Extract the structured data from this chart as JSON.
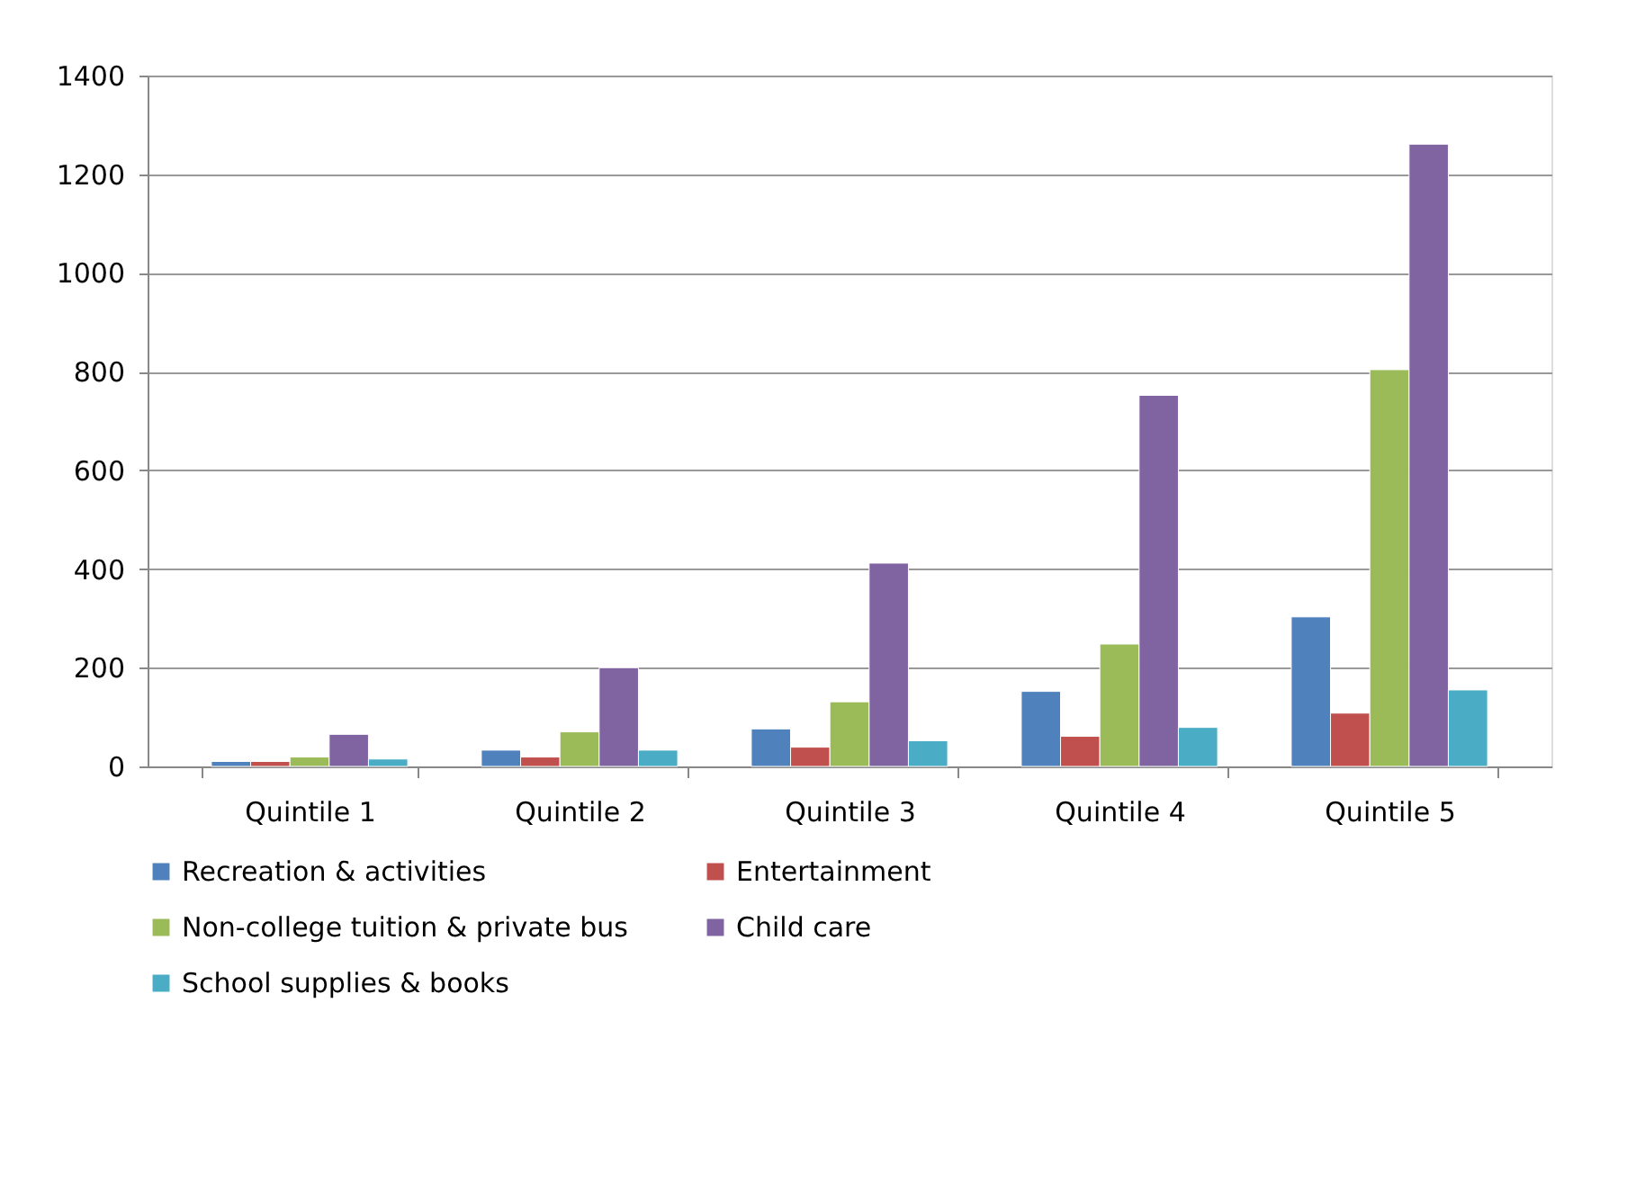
{
  "chart_data": {
    "type": "bar",
    "categories": [
      "Quintile 1",
      "Quintile 2",
      "Quintile 3",
      "Quintile 4",
      "Quintile 5"
    ],
    "series": [
      {
        "name": "Recreation & activities",
        "color": "#4f81bd",
        "values": [
          10,
          33,
          76,
          152,
          303
        ]
      },
      {
        "name": "Entertainment",
        "color": "#c0504d",
        "values": [
          10,
          19,
          39,
          61,
          108
        ]
      },
      {
        "name": "Non-college tuition & private bus",
        "color": "#9bbb59",
        "values": [
          19,
          70,
          131,
          248,
          804
        ]
      },
      {
        "name": "Child care",
        "color": "#8064a2",
        "values": [
          65,
          200,
          412,
          752,
          1261
        ]
      },
      {
        "name": "School supplies & books",
        "color": "#4bacc6",
        "values": [
          15,
          33,
          52,
          79,
          155
        ]
      }
    ],
    "ylim": [
      0,
      1400
    ],
    "yticks": [
      0,
      200,
      400,
      600,
      800,
      1000,
      1200,
      1400
    ],
    "grid": "y",
    "legend": "bottom"
  }
}
